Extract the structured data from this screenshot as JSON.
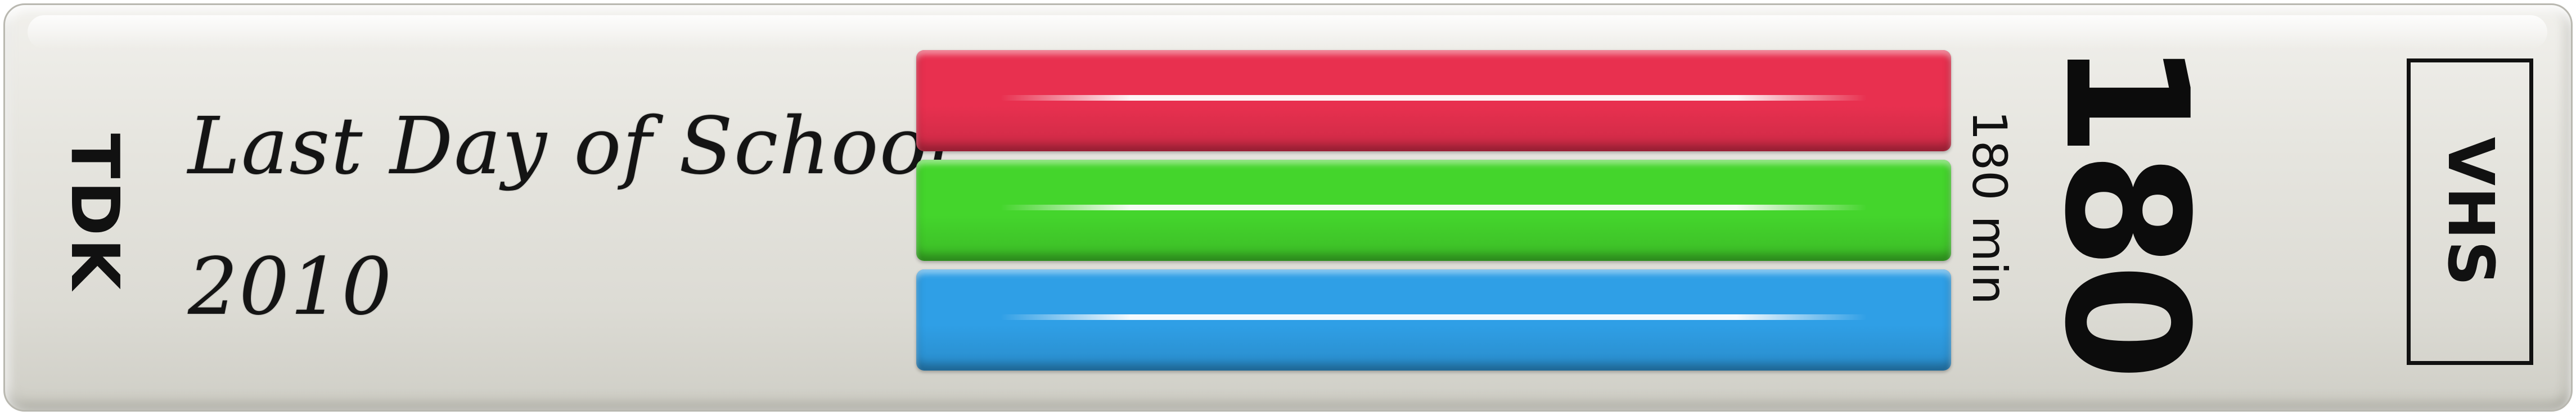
{
  "label": {
    "brand": "TDK",
    "handwriting": {
      "title": "Last Day of School",
      "year": "2010"
    },
    "stripes": [
      {
        "color": "#e8304f"
      },
      {
        "color": "#44d52c"
      },
      {
        "color": "#2f9fe6"
      }
    ],
    "length": {
      "number": "180",
      "caption": "180 min"
    },
    "format": "VHS"
  }
}
